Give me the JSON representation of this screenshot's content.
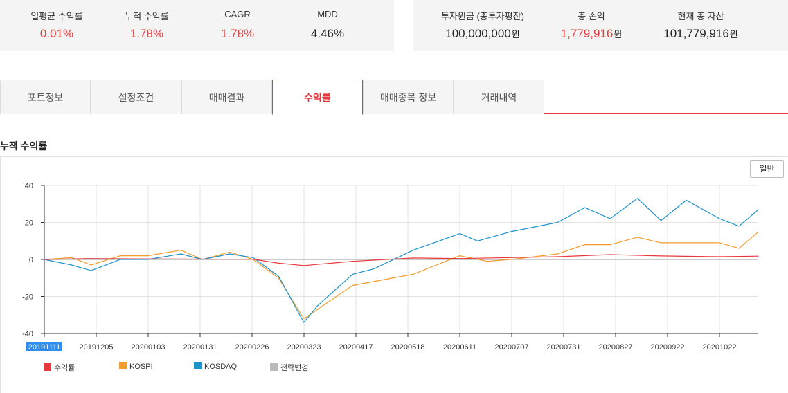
{
  "summary_left": [
    {
      "label": "일평균 수익률",
      "value": "0.01%",
      "tone": "red"
    },
    {
      "label": "누적 수익률",
      "value": "1.78%",
      "tone": "red"
    },
    {
      "label": "CAGR",
      "value": "1.78%",
      "tone": "red"
    },
    {
      "label": "MDD",
      "value": "4.46%",
      "tone": "black"
    }
  ],
  "summary_right": [
    {
      "label": "투자원금 (총투자평잔)",
      "value": "100,000,000",
      "unit": "원",
      "tone": "black"
    },
    {
      "label": "총 손익",
      "value": "1,779,916",
      "unit": "원",
      "tone": "red"
    },
    {
      "label": "현재 총 자산",
      "value": "101,779,916",
      "unit": "원",
      "tone": "black"
    }
  ],
  "tabs": [
    "포트정보",
    "설정조건",
    "매매결과",
    "수익률",
    "매매종목 정보",
    "거래내역"
  ],
  "active_tab": 3,
  "section_title": "누적 수익률",
  "mode_button": "일반",
  "colors": {
    "accent": "#e8383d",
    "kospi": "#f39c2e",
    "kosdaq": "#1b92c9",
    "strategy": "#bbbbbb"
  },
  "chart_data": {
    "type": "line",
    "x_ticks": [
      "20191111",
      "20191205",
      "20200103",
      "20200131",
      "20200226",
      "20200323",
      "20200417",
      "20200518",
      "20200611",
      "20200707",
      "20200731",
      "20200827",
      "20200922",
      "20201022"
    ],
    "highlighted_tick": "20191111",
    "y_ticks": [
      40,
      20,
      0,
      -20,
      -40
    ],
    "ylim": [
      -40,
      40
    ],
    "grid": true,
    "legend_position": "bottom-left",
    "series": [
      {
        "name": "수익률",
        "color": "#e8383d",
        "points": [
          [
            "20191111",
            0
          ],
          [
            "20191205",
            0.5
          ],
          [
            "20200103",
            0.3
          ],
          [
            "20200131",
            0.2
          ],
          [
            "20200226",
            0.1
          ],
          [
            "20200310",
            -2
          ],
          [
            "20200323",
            -3.3
          ],
          [
            "20200417",
            -1
          ],
          [
            "20200518",
            0.8
          ],
          [
            "20200611",
            0.5
          ],
          [
            "20200707",
            1
          ],
          [
            "20200731",
            1.5
          ],
          [
            "20200827",
            2.6
          ],
          [
            "20200922",
            1.9
          ],
          [
            "20201022",
            1.5
          ],
          [
            "20201111",
            1.8
          ]
        ]
      },
      {
        "name": "KOSPI",
        "color": "#f39c2e",
        "points": [
          [
            "20191111",
            0
          ],
          [
            "20191125",
            1
          ],
          [
            "20191205",
            -3
          ],
          [
            "20191220",
            2
          ],
          [
            "20200103",
            2
          ],
          [
            "20200120",
            5
          ],
          [
            "20200131",
            0
          ],
          [
            "20200214",
            4
          ],
          [
            "20200226",
            0
          ],
          [
            "20200310",
            -10
          ],
          [
            "20200323",
            -32
          ],
          [
            "20200417",
            -14
          ],
          [
            "20200518",
            -8
          ],
          [
            "20200611",
            2
          ],
          [
            "20200625",
            -1
          ],
          [
            "20200707",
            0
          ],
          [
            "20200731",
            3
          ],
          [
            "20200814",
            8
          ],
          [
            "20200827",
            8
          ],
          [
            "20200910",
            12
          ],
          [
            "20200922",
            9
          ],
          [
            "20201022",
            9
          ],
          [
            "20201101",
            6
          ],
          [
            "20201111",
            15
          ]
        ]
      },
      {
        "name": "KOSDAQ",
        "color": "#1b92c9",
        "points": [
          [
            "20191111",
            0
          ],
          [
            "20191125",
            -3
          ],
          [
            "20191205",
            -6
          ],
          [
            "20191220",
            0
          ],
          [
            "20200103",
            0
          ],
          [
            "20200120",
            3
          ],
          [
            "20200131",
            0
          ],
          [
            "20200214",
            3
          ],
          [
            "20200226",
            1
          ],
          [
            "20200310",
            -9
          ],
          [
            "20200323",
            -34
          ],
          [
            "20200330",
            -25
          ],
          [
            "20200417",
            -8
          ],
          [
            "20200428",
            -5
          ],
          [
            "20200518",
            5
          ],
          [
            "20200611",
            14
          ],
          [
            "20200620",
            10
          ],
          [
            "20200707",
            15
          ],
          [
            "20200731",
            20
          ],
          [
            "20200814",
            28
          ],
          [
            "20200827",
            22
          ],
          [
            "20200910",
            33
          ],
          [
            "20200922",
            21
          ],
          [
            "20201005",
            32
          ],
          [
            "20201022",
            22
          ],
          [
            "20201101",
            18
          ],
          [
            "20201111",
            27
          ]
        ]
      },
      {
        "name": "전략변경",
        "color": "#bbbbbb",
        "points": []
      }
    ]
  }
}
